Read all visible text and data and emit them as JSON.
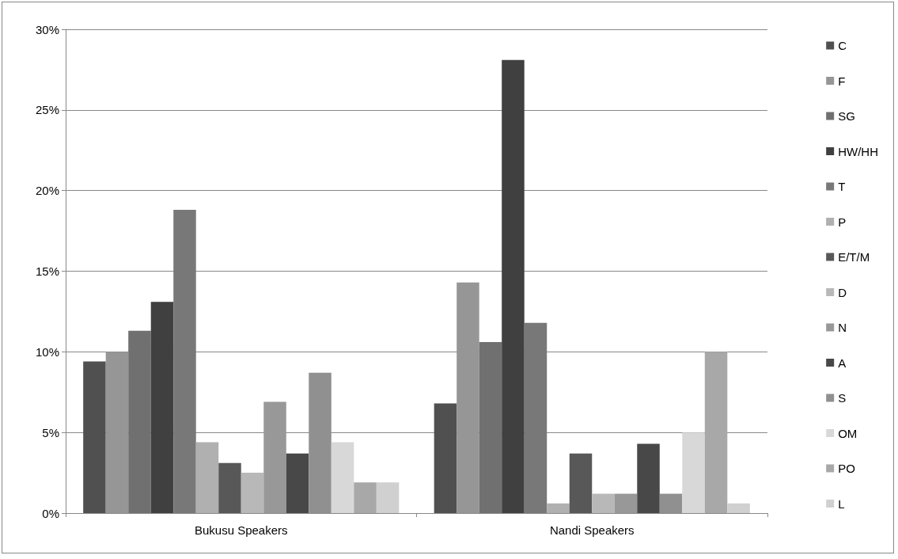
{
  "chart_data": {
    "type": "bar",
    "categories": [
      "Bukusu Speakers",
      "Nandi Speakers"
    ],
    "series": [
      {
        "name": "C",
        "color": "#505050",
        "values": [
          9.4,
          6.8
        ]
      },
      {
        "name": "F",
        "color": "#969696",
        "values": [
          10.0,
          14.3
        ]
      },
      {
        "name": "SG",
        "color": "#707070",
        "values": [
          11.3,
          10.6
        ]
      },
      {
        "name": "HW/HH",
        "color": "#404040",
        "values": [
          13.1,
          28.1
        ]
      },
      {
        "name": "T",
        "color": "#787878",
        "values": [
          18.8,
          11.8
        ]
      },
      {
        "name": "P",
        "color": "#b0b0b0",
        "values": [
          4.4,
          0.6
        ]
      },
      {
        "name": "E/T/M",
        "color": "#585858",
        "values": [
          3.1,
          3.7
        ]
      },
      {
        "name": "D",
        "color": "#b8b8b8",
        "values": [
          2.5,
          1.2
        ]
      },
      {
        "name": "N",
        "color": "#989898",
        "values": [
          6.9,
          1.2
        ]
      },
      {
        "name": "A",
        "color": "#484848",
        "values": [
          3.7,
          4.3
        ]
      },
      {
        "name": "S",
        "color": "#909090",
        "values": [
          8.7,
          1.2
        ]
      },
      {
        "name": "OM",
        "color": "#d8d8d8",
        "values": [
          4.4,
          5.0
        ]
      },
      {
        "name": "PO",
        "color": "#a8a8a8",
        "values": [
          1.9,
          10.0
        ]
      },
      {
        "name": "L",
        "color": "#d0d0d0",
        "values": [
          1.9,
          0.6
        ]
      }
    ],
    "ylim": [
      0,
      30
    ],
    "yticks": [
      {
        "value": 0,
        "label": "0%"
      },
      {
        "value": 5,
        "label": "5%"
      },
      {
        "value": 10,
        "label": "10%"
      },
      {
        "value": 15,
        "label": "15%"
      },
      {
        "value": 20,
        "label": "20%"
      },
      {
        "value": 25,
        "label": "25%"
      },
      {
        "value": 30,
        "label": "30%"
      }
    ],
    "grid": "y",
    "legend": "right"
  }
}
